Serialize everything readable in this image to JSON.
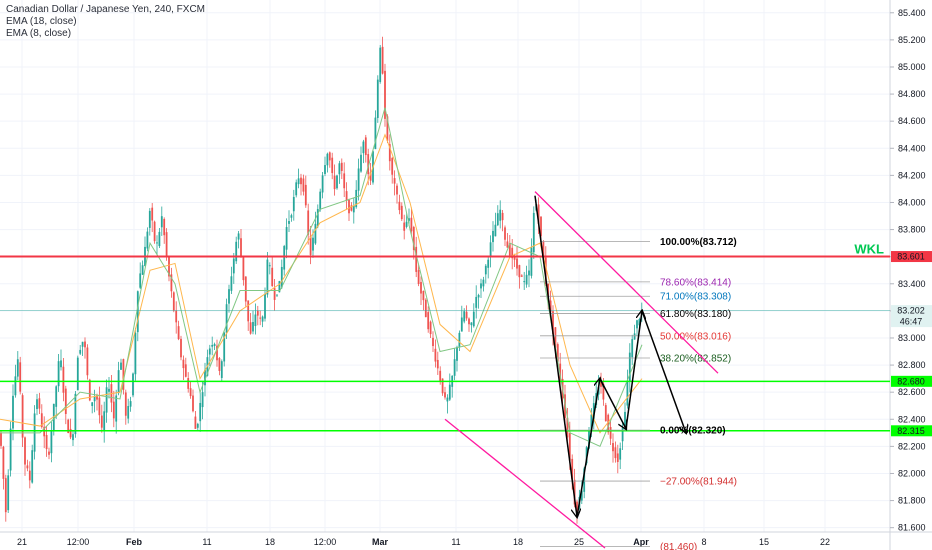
{
  "legend": {
    "title": "Canadian Dollar / Japanese Yen, 240, FXCM",
    "ema1": "EMA (18, close)",
    "ema2": "EMA (8, close)"
  },
  "chart_data": {
    "type": "candlestick",
    "symbol": "CAD/JPY",
    "interval": "240",
    "source": "FXCM",
    "y_range": [
      81.45,
      85.45
    ],
    "y_ticks": [
      "85.400",
      "85.200",
      "85.000",
      "84.800",
      "84.600",
      "84.400",
      "84.200",
      "84.000",
      "83.800",
      "83.600",
      "83.400",
      "83.200",
      "83.000",
      "82.800",
      "82.600",
      "82.400",
      "82.200",
      "82.000",
      "81.800",
      "81.600"
    ],
    "x_ticks": [
      "21",
      "12:00",
      "Feb",
      "11",
      "18",
      "12:00",
      "Mar",
      "11",
      "18",
      "25",
      "Apr",
      "8",
      "15",
      "22"
    ],
    "x_ticks_bold": [
      "Feb",
      "Mar",
      "Apr"
    ],
    "price_path": [
      [
        0,
        82.3
      ],
      [
        6,
        81.7
      ],
      [
        12,
        82.55
      ],
      [
        18,
        82.85
      ],
      [
        24,
        82.1
      ],
      [
        30,
        81.95
      ],
      [
        36,
        82.6
      ],
      [
        42,
        82.35
      ],
      [
        48,
        82.1
      ],
      [
        54,
        82.5
      ],
      [
        60,
        82.9
      ],
      [
        66,
        82.4
      ],
      [
        72,
        82.2
      ],
      [
        78,
        82.9
      ],
      [
        84,
        83.0
      ],
      [
        90,
        82.5
      ],
      [
        96,
        82.6
      ],
      [
        102,
        82.3
      ],
      [
        108,
        82.7
      ],
      [
        114,
        82.4
      ],
      [
        120,
        82.9
      ],
      [
        126,
        82.4
      ],
      [
        132,
        82.6
      ],
      [
        138,
        83.4
      ],
      [
        144,
        83.6
      ],
      [
        150,
        83.95
      ],
      [
        156,
        83.65
      ],
      [
        162,
        83.9
      ],
      [
        168,
        83.5
      ],
      [
        174,
        83.2
      ],
      [
        180,
        82.9
      ],
      [
        186,
        82.7
      ],
      [
        190,
        82.6
      ],
      [
        196,
        82.3
      ],
      [
        202,
        82.6
      ],
      [
        208,
        82.9
      ],
      [
        214,
        83.0
      ],
      [
        220,
        82.7
      ],
      [
        226,
        83.2
      ],
      [
        232,
        83.5
      ],
      [
        238,
        83.8
      ],
      [
        244,
        83.4
      ],
      [
        250,
        83.0
      ],
      [
        256,
        83.2
      ],
      [
        262,
        83.1
      ],
      [
        268,
        83.6
      ],
      [
        274,
        83.3
      ],
      [
        280,
        83.4
      ],
      [
        286,
        83.8
      ],
      [
        292,
        83.95
      ],
      [
        298,
        84.2
      ],
      [
        304,
        84.1
      ],
      [
        310,
        83.6
      ],
      [
        316,
        83.85
      ],
      [
        322,
        84.2
      ],
      [
        328,
        84.4
      ],
      [
        334,
        84.1
      ],
      [
        340,
        84.3
      ],
      [
        346,
        84.0
      ],
      [
        352,
        83.9
      ],
      [
        358,
        84.2
      ],
      [
        364,
        84.5
      ],
      [
        370,
        84.1
      ],
      [
        376,
        84.7
      ],
      [
        381,
        85.2
      ],
      [
        386,
        84.5
      ],
      [
        392,
        84.2
      ],
      [
        398,
        84.0
      ],
      [
        404,
        83.8
      ],
      [
        410,
        83.9
      ],
      [
        416,
        83.5
      ],
      [
        422,
        83.3
      ],
      [
        428,
        83.1
      ],
      [
        434,
        82.9
      ],
      [
        440,
        82.7
      ],
      [
        446,
        82.5
      ],
      [
        452,
        82.7
      ],
      [
        458,
        83.0
      ],
      [
        464,
        83.2
      ],
      [
        470,
        83.05
      ],
      [
        476,
        83.3
      ],
      [
        482,
        83.4
      ],
      [
        488,
        83.6
      ],
      [
        494,
        83.8
      ],
      [
        500,
        83.95
      ],
      [
        506,
        83.7
      ],
      [
        512,
        83.6
      ],
      [
        518,
        83.5
      ],
      [
        524,
        83.4
      ],
      [
        530,
        83.5
      ],
      [
        535,
        84.05
      ],
      [
        540,
        83.8
      ],
      [
        546,
        83.4
      ],
      [
        552,
        83.1
      ],
      [
        558,
        82.8
      ],
      [
        564,
        82.5
      ],
      [
        570,
        82.1
      ],
      [
        576,
        81.7
      ],
      [
        582,
        81.9
      ],
      [
        588,
        82.3
      ],
      [
        594,
        82.5
      ],
      [
        600,
        82.7
      ],
      [
        606,
        82.4
      ],
      [
        612,
        82.2
      ],
      [
        618,
        82.1
      ],
      [
        624,
        82.4
      ],
      [
        630,
        82.9
      ],
      [
        636,
        83.1
      ],
      [
        642,
        83.2
      ]
    ],
    "ema_slow_path": [
      [
        0,
        82.4
      ],
      [
        40,
        82.35
      ],
      [
        80,
        82.55
      ],
      [
        120,
        82.6
      ],
      [
        150,
        83.5
      ],
      [
        175,
        83.55
      ],
      [
        200,
        82.7
      ],
      [
        240,
        83.2
      ],
      [
        280,
        83.4
      ],
      [
        320,
        83.85
      ],
      [
        360,
        84.0
      ],
      [
        385,
        84.5
      ],
      [
        410,
        84.0
      ],
      [
        440,
        83.1
      ],
      [
        470,
        82.9
      ],
      [
        510,
        83.6
      ],
      [
        540,
        83.7
      ],
      [
        570,
        82.8
      ],
      [
        600,
        82.3
      ],
      [
        642,
        82.7
      ]
    ],
    "ema_fast_path": [
      [
        0,
        82.3
      ],
      [
        40,
        82.3
      ],
      [
        80,
        82.6
      ],
      [
        120,
        82.55
      ],
      [
        150,
        83.7
      ],
      [
        175,
        83.4
      ],
      [
        200,
        82.6
      ],
      [
        240,
        83.35
      ],
      [
        280,
        83.35
      ],
      [
        320,
        83.95
      ],
      [
        360,
        84.05
      ],
      [
        385,
        84.7
      ],
      [
        410,
        83.8
      ],
      [
        440,
        82.9
      ],
      [
        470,
        82.95
      ],
      [
        510,
        83.7
      ],
      [
        540,
        83.6
      ],
      [
        570,
        82.3
      ],
      [
        600,
        82.2
      ],
      [
        642,
        82.95
      ]
    ],
    "horizontal_levels": [
      {
        "name": "wkl",
        "value": 83.601,
        "label": "83.601",
        "color": "#f23645",
        "text": "WKL",
        "text_color": "#00c853"
      },
      {
        "name": "current-price",
        "value": 83.202,
        "label": "83.202",
        "color": "#26a69a",
        "countdown": "46:47"
      },
      {
        "name": "upper-green",
        "value": 82.68,
        "label": "82.680",
        "color": "#00ff00"
      },
      {
        "name": "lower-green",
        "value": 82.315,
        "label": "82.315",
        "color": "#00ff00"
      }
    ],
    "fib_levels": [
      {
        "label": "100.00%(83.712)",
        "value": 83.712,
        "color": "#000000",
        "bold": true
      },
      {
        "label": "78.60%(83.414)",
        "value": 83.414,
        "color": "#9c27b0",
        "bold": false
      },
      {
        "label": "71.00%(83.308)",
        "value": 83.308,
        "color": "#0277bd",
        "bold": false
      },
      {
        "label": "61.80%(83.180)",
        "value": 83.18,
        "color": "#000000",
        "bold": false
      },
      {
        "label": "50.00%(83.016)",
        "value": 83.016,
        "color": "#e53935",
        "bold": false
      },
      {
        "label": "38.20%(82.852)",
        "value": 82.852,
        "color": "#1b5e20",
        "bold": false
      },
      {
        "label": "0.00%(82.320)",
        "value": 82.32,
        "color": "#000000",
        "bold": true
      },
      {
        "label": "−27.00%(81.944)",
        "value": 81.944,
        "color": "#d32f2f",
        "bold": false
      },
      {
        "label": "(81.460)",
        "value": 81.46,
        "color": "#d32f2f",
        "bold": false
      }
    ],
    "fib_x_range": [
      540,
      650
    ],
    "trend_lines": [
      {
        "from": [
          535,
          84.08
        ],
        "to": [
          718,
          82.74
        ],
        "color": "#ff1aa0"
      },
      {
        "from": [
          445,
          82.4
        ],
        "to": [
          605,
          81.45
        ],
        "color": "#ff1aa0"
      }
    ],
    "zigzag": [
      [
        535,
        84.05
      ],
      [
        577,
        81.68
      ],
      [
        600,
        82.7
      ],
      [
        626,
        82.33
      ],
      [
        642,
        83.2
      ],
      [
        686,
        82.3
      ]
    ],
    "zigzag_color": "#000000"
  }
}
